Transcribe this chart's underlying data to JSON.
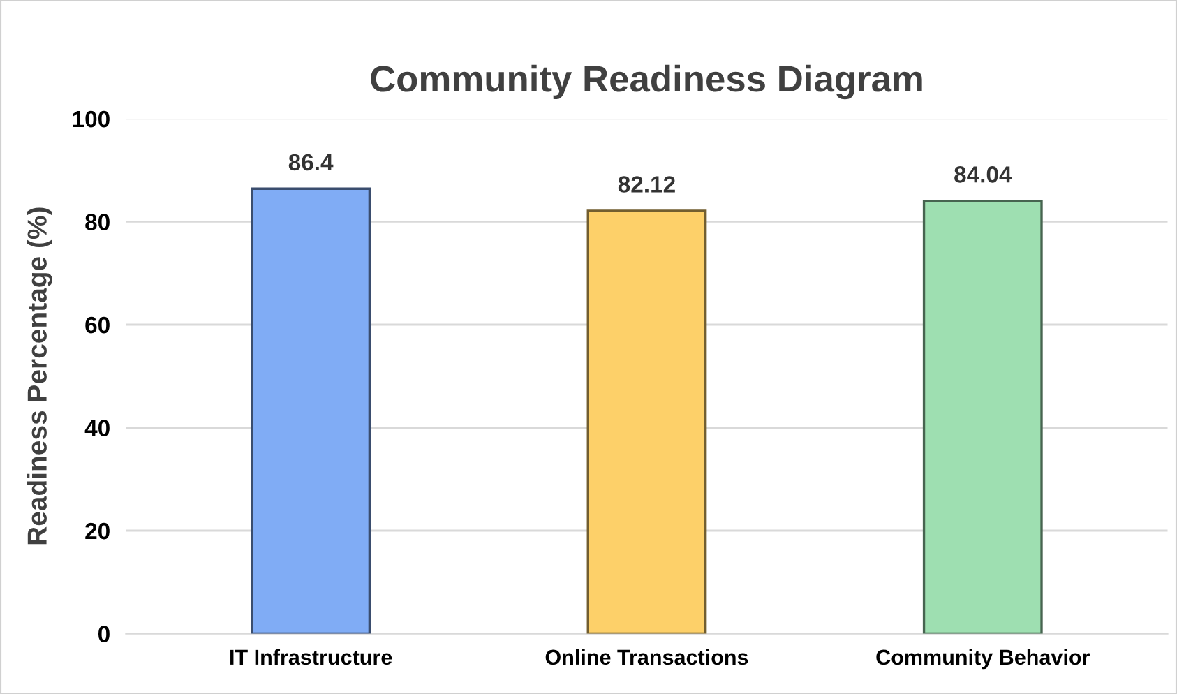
{
  "chart_data": {
    "type": "bar",
    "title": "Community Readiness Diagram",
    "ylabel": "Readiness Percentage (%)",
    "categories": [
      "IT Infrastructure",
      "Online Transactions",
      "Community Behavior"
    ],
    "values": [
      86.4,
      82.12,
      84.04
    ],
    "colors": [
      "#80acf5",
      "#fdd069",
      "#9edfb1"
    ],
    "ylim": [
      0,
      100
    ],
    "yticks": [
      0,
      20,
      40,
      60,
      80,
      100
    ],
    "grid": "y",
    "data_labels": true
  }
}
